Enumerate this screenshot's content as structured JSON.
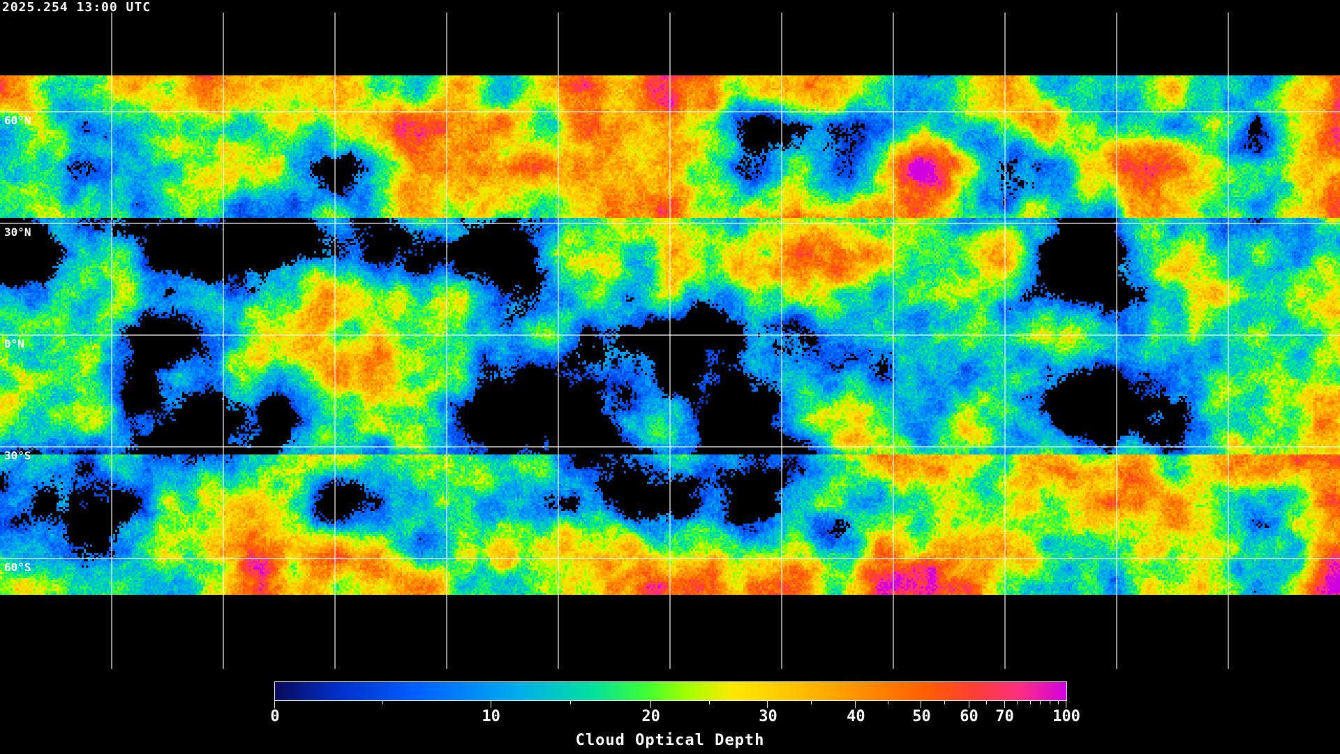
{
  "timestamp": "2025.254 13:00 UTC",
  "map": {
    "projection": "equirectangular",
    "gridline_spacing_deg": 30,
    "latitude_labels": [
      "60°N",
      "30°N",
      "0°N",
      "30°S",
      "60°S"
    ],
    "gridline_color": "#ffffff",
    "coastline_color": "#ffffff",
    "no_data_color": "#000000"
  },
  "colorbar": {
    "title": "Cloud Optical Depth",
    "range": [
      0,
      100
    ],
    "labeled_ticks": [
      "0",
      "10",
      "20",
      "30",
      "40",
      "50",
      "60",
      "70",
      "100"
    ],
    "colors": [
      "#0a0a5a",
      "#0060ff",
      "#00a8f0",
      "#00e0a0",
      "#40ff30",
      "#a0ff00",
      "#ffe800",
      "#ffc000",
      "#ff9000",
      "#ff6000",
      "#ff3080",
      "#d000e0"
    ]
  }
}
